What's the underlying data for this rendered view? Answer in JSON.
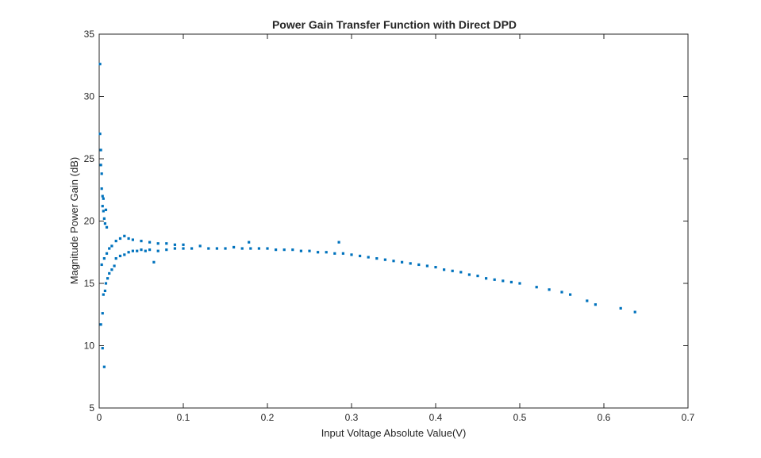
{
  "chart_data": {
    "type": "scatter",
    "title": "Power Gain Transfer Function with Direct DPD",
    "xlabel": "Input Voltage Absolute Value(V)",
    "ylabel": "Magnitude Power Gain (dB)",
    "xlim": [
      0,
      0.7
    ],
    "ylim": [
      5,
      35
    ],
    "xticks": [
      0,
      0.1,
      0.2,
      0.3,
      0.4,
      0.5,
      0.6,
      0.7
    ],
    "yticks": [
      5,
      10,
      15,
      20,
      25,
      30,
      35
    ],
    "xtick_labels": [
      "0",
      "0.1",
      "0.2",
      "0.3",
      "0.4",
      "0.5",
      "0.6",
      "0.7"
    ],
    "ytick_labels": [
      "5",
      "10",
      "15",
      "20",
      "25",
      "30",
      "35"
    ],
    "grid": false,
    "marker_color": "#0072BD",
    "points": [
      [
        0.001,
        32.6
      ],
      [
        0.001,
        27.0
      ],
      [
        0.002,
        25.7
      ],
      [
        0.002,
        24.5
      ],
      [
        0.003,
        23.8
      ],
      [
        0.003,
        22.6
      ],
      [
        0.004,
        22.0
      ],
      [
        0.004,
        21.2
      ],
      [
        0.005,
        20.8
      ],
      [
        0.005,
        21.8
      ],
      [
        0.006,
        20.2
      ],
      [
        0.007,
        19.8
      ],
      [
        0.008,
        20.9
      ],
      [
        0.009,
        19.5
      ],
      [
        0.002,
        11.7
      ],
      [
        0.004,
        9.8
      ],
      [
        0.006,
        8.3
      ],
      [
        0.004,
        12.6
      ],
      [
        0.005,
        14.1
      ],
      [
        0.007,
        14.4
      ],
      [
        0.008,
        15.0
      ],
      [
        0.01,
        15.4
      ],
      [
        0.012,
        15.8
      ],
      [
        0.015,
        16.1
      ],
      [
        0.018,
        16.4
      ],
      [
        0.003,
        16.5
      ],
      [
        0.006,
        17.0
      ],
      [
        0.009,
        17.4
      ],
      [
        0.012,
        17.8
      ],
      [
        0.015,
        18.0
      ],
      [
        0.02,
        18.4
      ],
      [
        0.025,
        18.6
      ],
      [
        0.03,
        18.8
      ],
      [
        0.035,
        18.6
      ],
      [
        0.04,
        18.5
      ],
      [
        0.02,
        17.0
      ],
      [
        0.025,
        17.2
      ],
      [
        0.03,
        17.3
      ],
      [
        0.035,
        17.5
      ],
      [
        0.04,
        17.6
      ],
      [
        0.045,
        17.6
      ],
      [
        0.05,
        17.7
      ],
      [
        0.055,
        17.6
      ],
      [
        0.06,
        17.7
      ],
      [
        0.065,
        16.7
      ],
      [
        0.05,
        18.4
      ],
      [
        0.06,
        18.3
      ],
      [
        0.07,
        18.2
      ],
      [
        0.08,
        18.2
      ],
      [
        0.09,
        18.1
      ],
      [
        0.07,
        17.6
      ],
      [
        0.08,
        17.7
      ],
      [
        0.09,
        17.8
      ],
      [
        0.1,
        17.8
      ],
      [
        0.11,
        17.8
      ],
      [
        0.1,
        18.1
      ],
      [
        0.12,
        18.0
      ],
      [
        0.13,
        17.8
      ],
      [
        0.14,
        17.8
      ],
      [
        0.15,
        17.8
      ],
      [
        0.16,
        17.9
      ],
      [
        0.17,
        17.8
      ],
      [
        0.178,
        18.3
      ],
      [
        0.18,
        17.8
      ],
      [
        0.19,
        17.8
      ],
      [
        0.2,
        17.8
      ],
      [
        0.21,
        17.7
      ],
      [
        0.22,
        17.7
      ],
      [
        0.23,
        17.7
      ],
      [
        0.24,
        17.6
      ],
      [
        0.25,
        17.6
      ],
      [
        0.26,
        17.5
      ],
      [
        0.27,
        17.5
      ],
      [
        0.28,
        17.4
      ],
      [
        0.285,
        18.3
      ],
      [
        0.29,
        17.4
      ],
      [
        0.3,
        17.3
      ],
      [
        0.31,
        17.2
      ],
      [
        0.32,
        17.1
      ],
      [
        0.33,
        17.0
      ],
      [
        0.34,
        16.9
      ],
      [
        0.35,
        16.8
      ],
      [
        0.36,
        16.7
      ],
      [
        0.37,
        16.6
      ],
      [
        0.38,
        16.5
      ],
      [
        0.39,
        16.4
      ],
      [
        0.4,
        16.3
      ],
      [
        0.41,
        16.1
      ],
      [
        0.42,
        16.0
      ],
      [
        0.43,
        15.9
      ],
      [
        0.44,
        15.7
      ],
      [
        0.45,
        15.6
      ],
      [
        0.46,
        15.4
      ],
      [
        0.47,
        15.3
      ],
      [
        0.48,
        15.2
      ],
      [
        0.49,
        15.1
      ],
      [
        0.5,
        15.0
      ],
      [
        0.52,
        14.7
      ],
      [
        0.535,
        14.5
      ],
      [
        0.55,
        14.3
      ],
      [
        0.56,
        14.1
      ],
      [
        0.58,
        13.6
      ],
      [
        0.59,
        13.3
      ],
      [
        0.62,
        13.0
      ],
      [
        0.637,
        12.7
      ]
    ]
  }
}
